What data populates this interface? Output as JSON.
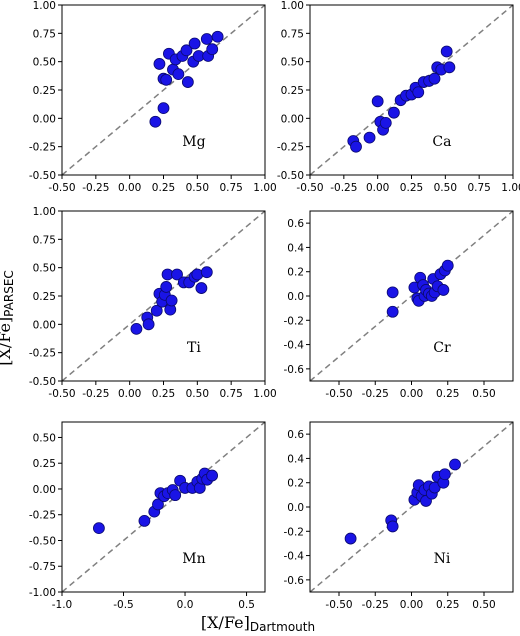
{
  "figure": {
    "xlabel": {
      "main": "[X/Fe]",
      "sub": "Dartmouth"
    },
    "ylabel": {
      "main": "[X/Fe]",
      "sub": "PARSEC"
    }
  },
  "colors": {
    "point_fill": "#1a14e6",
    "point_edge": "#0b0a70",
    "ref_line": "#808080"
  },
  "chart_data": [
    {
      "type": "scatter",
      "label": "Mg",
      "xlim": [
        -0.5,
        1.0
      ],
      "ylim": [
        -0.5,
        1.0
      ],
      "xticks": [
        "-0.50",
        "-0.25",
        "0.00",
        "0.25",
        "0.50",
        "0.75",
        "1.00"
      ],
      "yticks": [
        "-0.50",
        "-0.25",
        "0.00",
        "0.25",
        "0.50",
        "0.75",
        "1.00"
      ],
      "reference_line": "y = x",
      "points": [
        [
          0.19,
          -0.03
        ],
        [
          0.25,
          0.09
        ],
        [
          0.22,
          0.48
        ],
        [
          0.25,
          0.35
        ],
        [
          0.27,
          0.34
        ],
        [
          0.29,
          0.57
        ],
        [
          0.32,
          0.43
        ],
        [
          0.34,
          0.52
        ],
        [
          0.36,
          0.39
        ],
        [
          0.39,
          0.55
        ],
        [
          0.42,
          0.6
        ],
        [
          0.43,
          0.32
        ],
        [
          0.47,
          0.5
        ],
        [
          0.48,
          0.66
        ],
        [
          0.51,
          0.55
        ],
        [
          0.57,
          0.7
        ],
        [
          0.58,
          0.55
        ],
        [
          0.61,
          0.61
        ],
        [
          0.65,
          0.72
        ]
      ]
    },
    {
      "type": "scatter",
      "label": "Ca",
      "xlim": [
        -0.5,
        1.0
      ],
      "ylim": [
        -0.5,
        1.0
      ],
      "xticks": [
        "-0.50",
        "-0.25",
        "0.00",
        "0.25",
        "0.50",
        "0.75",
        "1.00"
      ],
      "yticks": [
        "-0.50",
        "-0.25",
        "0.00",
        "0.25",
        "0.50",
        "0.75",
        "1.00"
      ],
      "reference_line": "y = x",
      "points": [
        [
          -0.18,
          -0.2
        ],
        [
          -0.16,
          -0.25
        ],
        [
          -0.06,
          -0.17
        ],
        [
          0.0,
          0.15
        ],
        [
          0.02,
          -0.03
        ],
        [
          0.04,
          -0.1
        ],
        [
          0.06,
          -0.04
        ],
        [
          0.12,
          0.05
        ],
        [
          0.17,
          0.16
        ],
        [
          0.21,
          0.2
        ],
        [
          0.25,
          0.21
        ],
        [
          0.28,
          0.27
        ],
        [
          0.3,
          0.23
        ],
        [
          0.34,
          0.32
        ],
        [
          0.38,
          0.33
        ],
        [
          0.42,
          0.35
        ],
        [
          0.44,
          0.45
        ],
        [
          0.47,
          0.43
        ],
        [
          0.51,
          0.59
        ],
        [
          0.53,
          0.45
        ]
      ]
    },
    {
      "type": "scatter",
      "label": "Ti",
      "xlim": [
        -0.5,
        1.0
      ],
      "ylim": [
        -0.5,
        1.0
      ],
      "xticks": [
        "-0.50",
        "-0.25",
        "0.00",
        "0.25",
        "0.50",
        "0.75",
        "1.00"
      ],
      "yticks": [
        "-0.50",
        "-0.25",
        "0.00",
        "0.25",
        "0.50",
        "0.75",
        "1.00"
      ],
      "reference_line": "y = x",
      "points": [
        [
          0.05,
          -0.04
        ],
        [
          0.13,
          0.06
        ],
        [
          0.14,
          0.0
        ],
        [
          0.2,
          0.12
        ],
        [
          0.22,
          0.27
        ],
        [
          0.24,
          0.2
        ],
        [
          0.26,
          0.26
        ],
        [
          0.27,
          0.33
        ],
        [
          0.28,
          0.44
        ],
        [
          0.3,
          0.13
        ],
        [
          0.31,
          0.21
        ],
        [
          0.35,
          0.44
        ],
        [
          0.4,
          0.37
        ],
        [
          0.44,
          0.37
        ],
        [
          0.48,
          0.42
        ],
        [
          0.5,
          0.44
        ],
        [
          0.53,
          0.32
        ],
        [
          0.57,
          0.46
        ]
      ]
    },
    {
      "type": "scatter",
      "label": "Cr",
      "xlim": [
        -0.7,
        0.7
      ],
      "ylim": [
        -0.7,
        0.7
      ],
      "xticks": [
        "-0.50",
        "-0.25",
        "0.00",
        "0.25",
        "0.50"
      ],
      "yticks": [
        "-0.6",
        "-0.4",
        "-0.2",
        "0.0",
        "0.2",
        "0.4",
        "0.6"
      ],
      "reference_line": "y = x",
      "points": [
        [
          -0.13,
          0.03
        ],
        [
          -0.13,
          -0.13
        ],
        [
          0.02,
          0.07
        ],
        [
          0.04,
          -0.02
        ],
        [
          0.05,
          -0.04
        ],
        [
          0.06,
          0.15
        ],
        [
          0.08,
          0.09
        ],
        [
          0.09,
          0.0
        ],
        [
          0.1,
          0.05
        ],
        [
          0.12,
          0.02
        ],
        [
          0.14,
          0.0
        ],
        [
          0.15,
          0.14
        ],
        [
          0.16,
          0.03
        ],
        [
          0.18,
          0.08
        ],
        [
          0.2,
          0.18
        ],
        [
          0.22,
          0.05
        ],
        [
          0.23,
          0.21
        ],
        [
          0.25,
          0.25
        ]
      ]
    },
    {
      "type": "scatter",
      "label": "Mn",
      "xlim": [
        -1.0,
        0.65
      ],
      "ylim": [
        -1.0,
        0.65
      ],
      "xticks": [
        "-1.0",
        "-0.5",
        "0.0",
        "0.5"
      ],
      "yticks": [
        "-1.00",
        "-0.75",
        "-0.50",
        "-0.25",
        "0.00",
        "0.25",
        "0.50"
      ],
      "reference_line": "y = x",
      "points": [
        [
          -0.7,
          -0.38
        ],
        [
          -0.33,
          -0.31
        ],
        [
          -0.25,
          -0.22
        ],
        [
          -0.22,
          -0.15
        ],
        [
          -0.2,
          -0.04
        ],
        [
          -0.17,
          -0.07
        ],
        [
          -0.14,
          -0.04
        ],
        [
          -0.1,
          -0.01
        ],
        [
          -0.08,
          -0.06
        ],
        [
          -0.04,
          0.08
        ],
        [
          0.0,
          0.01
        ],
        [
          0.06,
          0.01
        ],
        [
          0.1,
          0.07
        ],
        [
          0.12,
          0.01
        ],
        [
          0.14,
          0.1
        ],
        [
          0.16,
          0.15
        ],
        [
          0.18,
          0.09
        ],
        [
          0.22,
          0.13
        ]
      ]
    },
    {
      "type": "scatter",
      "label": "Ni",
      "xlim": [
        -0.7,
        0.7
      ],
      "ylim": [
        -0.7,
        0.7
      ],
      "xticks": [
        "-0.50",
        "-0.25",
        "0.00",
        "0.25",
        "0.50"
      ],
      "yticks": [
        "-0.6",
        "-0.4",
        "-0.2",
        "0.0",
        "0.2",
        "0.4",
        "0.6"
      ],
      "reference_line": "y = x",
      "points": [
        [
          -0.42,
          -0.26
        ],
        [
          -0.14,
          -0.11
        ],
        [
          -0.13,
          -0.16
        ],
        [
          0.02,
          0.06
        ],
        [
          0.04,
          0.12
        ],
        [
          0.05,
          0.18
        ],
        [
          0.07,
          0.09
        ],
        [
          0.09,
          0.14
        ],
        [
          0.1,
          0.05
        ],
        [
          0.12,
          0.17
        ],
        [
          0.14,
          0.11
        ],
        [
          0.16,
          0.16
        ],
        [
          0.18,
          0.25
        ],
        [
          0.22,
          0.2
        ],
        [
          0.23,
          0.27
        ],
        [
          0.3,
          0.35
        ]
      ]
    }
  ]
}
